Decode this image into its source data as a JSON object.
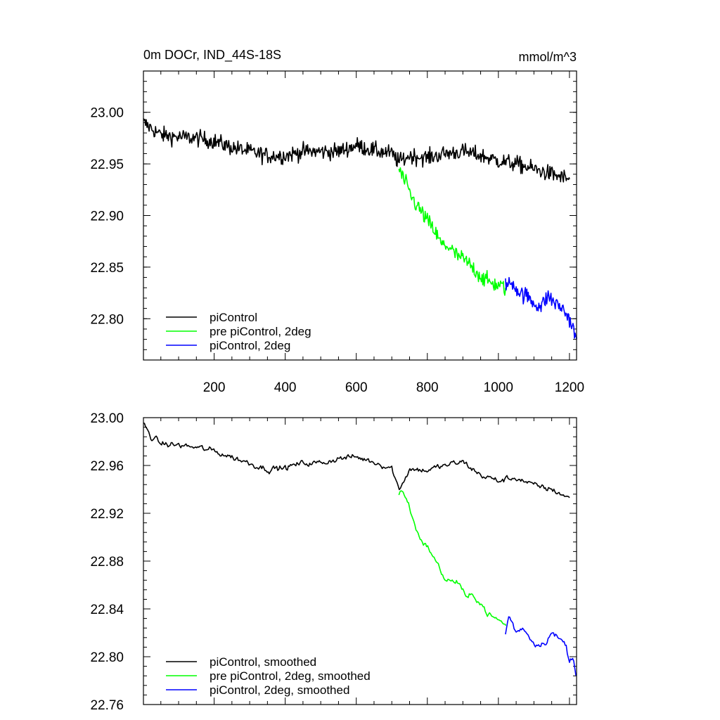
{
  "chart_data": [
    {
      "type": "line",
      "title": "0m DOCr, IND_44S-18S",
      "units": "mmol/m^3",
      "xlim": [
        1,
        1220
      ],
      "ylim": [
        22.76,
        23.04
      ],
      "xticks": [
        200,
        400,
        600,
        800,
        1000,
        1200
      ],
      "xtick_labels": [
        "200",
        "400",
        "600",
        "800",
        "1000",
        "1200"
      ],
      "yticks": [
        22.8,
        22.85,
        22.9,
        22.95,
        23.0
      ],
      "ytick_labels": [
        "22.80",
        "22.85",
        "22.90",
        "22.95",
        "23.00"
      ],
      "grid": false,
      "legend_position": "bottom-left",
      "series": [
        {
          "name": "piControl",
          "color": "#000000",
          "x": [
            1,
            50,
            100,
            150,
            200,
            250,
            300,
            350,
            400,
            450,
            500,
            550,
            600,
            650,
            700,
            720,
            750,
            800,
            850,
            900,
            950,
            1000,
            1050,
            1100,
            1150,
            1200
          ],
          "y": [
            22.99,
            22.978,
            22.976,
            22.975,
            22.972,
            22.966,
            22.962,
            22.958,
            22.958,
            22.962,
            22.962,
            22.962,
            22.968,
            22.963,
            22.96,
            22.952,
            22.958,
            22.956,
            22.96,
            22.962,
            22.958,
            22.953,
            22.95,
            22.945,
            22.94,
            22.935
          ]
        },
        {
          "name": "pre piControl, 2deg",
          "color": "#00ff00",
          "x": [
            720,
            740,
            760,
            780,
            800,
            820,
            840,
            860,
            880,
            900,
            920,
            940,
            960,
            980,
            1000,
            1020
          ],
          "y": [
            22.945,
            22.93,
            22.915,
            22.905,
            22.895,
            22.885,
            22.872,
            22.87,
            22.862,
            22.858,
            22.852,
            22.845,
            22.838,
            22.835,
            22.832,
            22.83
          ]
        },
        {
          "name": "piControl, 2deg",
          "color": "#0000ff",
          "x": [
            1020,
            1040,
            1060,
            1080,
            1100,
            1120,
            1140,
            1160,
            1180,
            1200,
            1210,
            1220
          ],
          "y": [
            22.832,
            22.835,
            22.825,
            22.822,
            22.815,
            22.812,
            22.822,
            22.815,
            22.81,
            22.8,
            22.79,
            22.78
          ]
        }
      ]
    },
    {
      "type": "line",
      "xlim": [
        1,
        1220
      ],
      "ylim": [
        22.76,
        23.0
      ],
      "xticks": [
        200,
        400,
        600,
        800,
        1000,
        1200
      ],
      "xtick_labels": [],
      "yticks": [
        22.76,
        22.8,
        22.84,
        22.88,
        22.92,
        22.96,
        23.0
      ],
      "ytick_labels": [
        "22.76",
        "22.80",
        "22.84",
        "22.88",
        "22.92",
        "22.96",
        "23.00"
      ],
      "grid": false,
      "legend_position": "bottom-left",
      "series": [
        {
          "name": "piControl, smoothed",
          "color": "#000000",
          "x": [
            1,
            20,
            50,
            100,
            150,
            200,
            250,
            300,
            350,
            400,
            450,
            500,
            550,
            600,
            650,
            700,
            720,
            750,
            800,
            850,
            900,
            950,
            1000,
            1050,
            1100,
            1150,
            1200
          ],
          "y": [
            22.995,
            22.985,
            22.978,
            22.977,
            22.975,
            22.972,
            22.967,
            22.962,
            22.957,
            22.958,
            22.962,
            22.962,
            22.966,
            22.967,
            22.963,
            22.958,
            22.94,
            22.957,
            22.956,
            22.96,
            22.963,
            22.952,
            22.947,
            22.95,
            22.943,
            22.94,
            22.933
          ]
        },
        {
          "name": "pre piControl, 2deg, smoothed",
          "color": "#00ff00",
          "x": [
            720,
            730,
            750,
            770,
            790,
            810,
            830,
            850,
            870,
            890,
            910,
            930,
            950,
            970,
            990,
            1010,
            1020
          ],
          "y": [
            22.935,
            22.94,
            22.925,
            22.905,
            22.895,
            22.888,
            22.876,
            22.865,
            22.863,
            22.862,
            22.848,
            22.852,
            22.845,
            22.836,
            22.832,
            22.829,
            22.826
          ]
        },
        {
          "name": "piControl, 2deg, smoothed",
          "color": "#0000ff",
          "x": [
            1020,
            1030,
            1050,
            1070,
            1090,
            1110,
            1130,
            1150,
            1170,
            1190,
            1200,
            1210,
            1220
          ],
          "y": [
            22.82,
            22.835,
            22.82,
            22.825,
            22.815,
            22.81,
            22.812,
            22.82,
            22.815,
            22.81,
            22.795,
            22.8,
            22.785
          ]
        }
      ]
    }
  ]
}
